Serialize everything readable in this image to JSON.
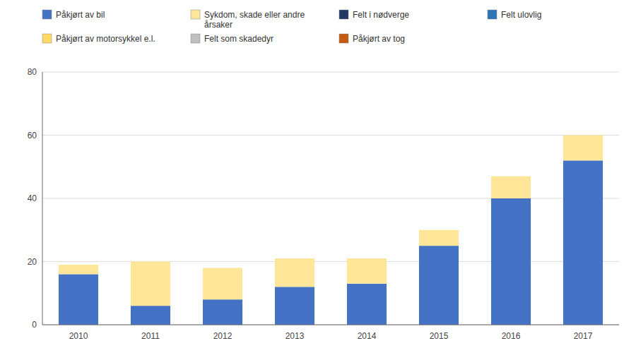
{
  "chart_data": {
    "type": "bar",
    "stacked": true,
    "grid": true,
    "categories": [
      "2010",
      "2011",
      "2012",
      "2013",
      "2014",
      "2015",
      "2016",
      "2017"
    ],
    "series": [
      {
        "name": "Påkjørt av bil",
        "color": "#4472C4",
        "values": [
          16,
          6,
          8,
          12,
          13,
          25,
          40,
          52
        ]
      },
      {
        "name": "Sykdom, skade eller andre\nårsaker",
        "color": "#FFE699",
        "values": [
          3,
          14,
          10,
          9,
          8,
          5,
          7,
          8
        ]
      },
      {
        "name": "Felt i nødverge",
        "color": "#1F3864",
        "values": [
          0,
          0,
          0,
          0,
          0,
          0,
          0,
          0
        ]
      },
      {
        "name": "Felt ulovlig",
        "color": "#2E75B6",
        "values": [
          0,
          0,
          0,
          0,
          0,
          0,
          0,
          0
        ]
      },
      {
        "name": "Påkjørt av motorsykkel e.l.",
        "color": "#FFD966",
        "values": [
          0,
          0,
          0,
          0,
          0,
          0,
          0,
          0
        ]
      },
      {
        "name": "Felt som skadedyr",
        "color": "#BFBFBF",
        "values": [
          0,
          0,
          0,
          0,
          0,
          0,
          0,
          0
        ]
      },
      {
        "name": "Påkjørt av tog",
        "color": "#C55A11",
        "values": [
          0,
          0,
          0,
          0,
          0,
          0,
          0,
          0
        ]
      }
    ],
    "ylim": [
      0,
      80
    ],
    "yticks": [
      0,
      20,
      40,
      60,
      80
    ]
  }
}
